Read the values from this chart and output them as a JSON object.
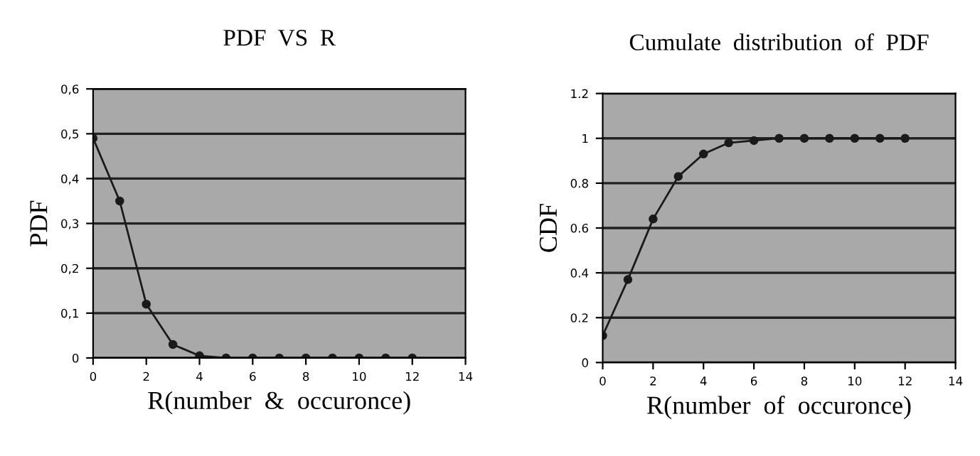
{
  "chart_data": [
    {
      "type": "line",
      "title": "PDF  VS  R",
      "xlabel": "R(number  &  occuronce)",
      "ylabel": "PDF",
      "x": [
        0,
        1,
        2,
        3,
        4,
        5,
        6,
        7,
        8,
        9,
        10,
        11,
        12
      ],
      "series": [
        {
          "color": "#1a1a1a",
          "values": [
            0.49,
            0.35,
            0.12,
            0.03,
            0.005,
            0,
            0,
            0,
            0,
            0,
            0,
            0,
            0
          ]
        }
      ],
      "xlim": [
        0,
        14
      ],
      "xticks": [
        0,
        2,
        4,
        6,
        8,
        10,
        12,
        14
      ],
      "ylim": [
        0,
        0.6
      ],
      "yticks": [
        0,
        {
          "value": 0.1,
          "label": "0,1"
        },
        {
          "value": 0.2,
          "label": "0,2"
        },
        {
          "value": 0.3,
          "label": "0,3"
        },
        {
          "value": 0.4,
          "label": "0,4"
        },
        {
          "value": 0.5,
          "label": "0,5"
        },
        {
          "value": 0.6,
          "label": "0,6"
        }
      ],
      "grid": "y",
      "marker": "circle",
      "line_style": "solid"
    },
    {
      "type": "line",
      "title": "Cumulate  distribution  of  PDF",
      "xlabel": "R(number  of  occuronce)",
      "ylabel": "CDF",
      "x": [
        0,
        1,
        2,
        3,
        4,
        5,
        6,
        7,
        8,
        9,
        10,
        11,
        12
      ],
      "series": [
        {
          "color": "#1a1a1a",
          "values": [
            0.12,
            0.37,
            0.64,
            0.83,
            0.93,
            0.98,
            0.99,
            1,
            1,
            1,
            1,
            1,
            1
          ]
        }
      ],
      "xlim": [
        0,
        14
      ],
      "xticks": [
        0,
        2,
        4,
        6,
        8,
        10,
        12,
        14
      ],
      "ylim": [
        0,
        1.2
      ],
      "yticks": [
        0,
        0.2,
        0.4,
        0.6,
        0.8,
        1,
        1.2
      ],
      "grid": "y",
      "marker": "circle",
      "line_style": "solid"
    }
  ]
}
